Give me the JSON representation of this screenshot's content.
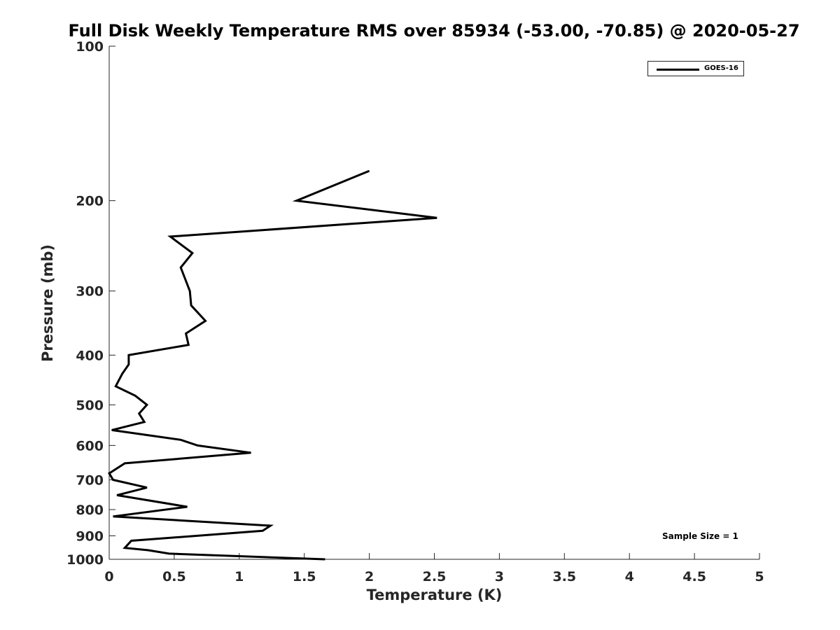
{
  "chart_data": {
    "type": "line",
    "title": "Full Disk Weekly Temperature RMS over 85934 (-53.00, -70.85) @ 2020-05-27",
    "xlabel": "Temperature (K)",
    "ylabel": "Pressure (mb)",
    "xlim": [
      0,
      5
    ],
    "ylim": [
      1000,
      100
    ],
    "yscale": "log",
    "y_reversed": true,
    "grid": false,
    "legend_position": "top-right",
    "x_ticks": [
      "0",
      "0.5",
      "1",
      "1.5",
      "2",
      "2.5",
      "3",
      "3.5",
      "4",
      "4.5",
      "5"
    ],
    "y_ticks": [
      "100",
      "200",
      "300",
      "400",
      "500",
      "600",
      "700",
      "800",
      "900",
      "1000"
    ],
    "series": [
      {
        "name": "GOES-16",
        "color": "#000000",
        "points": [
          [
            2.0,
            175
          ],
          [
            1.44,
            200
          ],
          [
            2.52,
            216
          ],
          [
            0.47,
            235
          ],
          [
            0.64,
            253
          ],
          [
            0.55,
            270
          ],
          [
            0.62,
            300
          ],
          [
            0.63,
            320
          ],
          [
            0.74,
            343
          ],
          [
            0.59,
            363
          ],
          [
            0.61,
            382
          ],
          [
            0.15,
            400
          ],
          [
            0.15,
            417
          ],
          [
            0.1,
            435
          ],
          [
            0.05,
            460
          ],
          [
            0.2,
            480
          ],
          [
            0.29,
            500
          ],
          [
            0.23,
            520
          ],
          [
            0.27,
            540
          ],
          [
            0.02,
            560
          ],
          [
            0.55,
            585
          ],
          [
            0.68,
            600
          ],
          [
            1.09,
            620
          ],
          [
            0.12,
            650
          ],
          [
            0.0,
            680
          ],
          [
            0.03,
            700
          ],
          [
            0.29,
            725
          ],
          [
            0.06,
            750
          ],
          [
            0.6,
            790
          ],
          [
            0.03,
            825
          ],
          [
            1.24,
            860
          ],
          [
            1.18,
            880
          ],
          [
            0.17,
            920
          ],
          [
            0.12,
            950
          ],
          [
            0.3,
            960
          ],
          [
            0.46,
            975
          ],
          [
            1.66,
            1000
          ]
        ]
      }
    ],
    "annotation": "Sample Size = 1"
  }
}
